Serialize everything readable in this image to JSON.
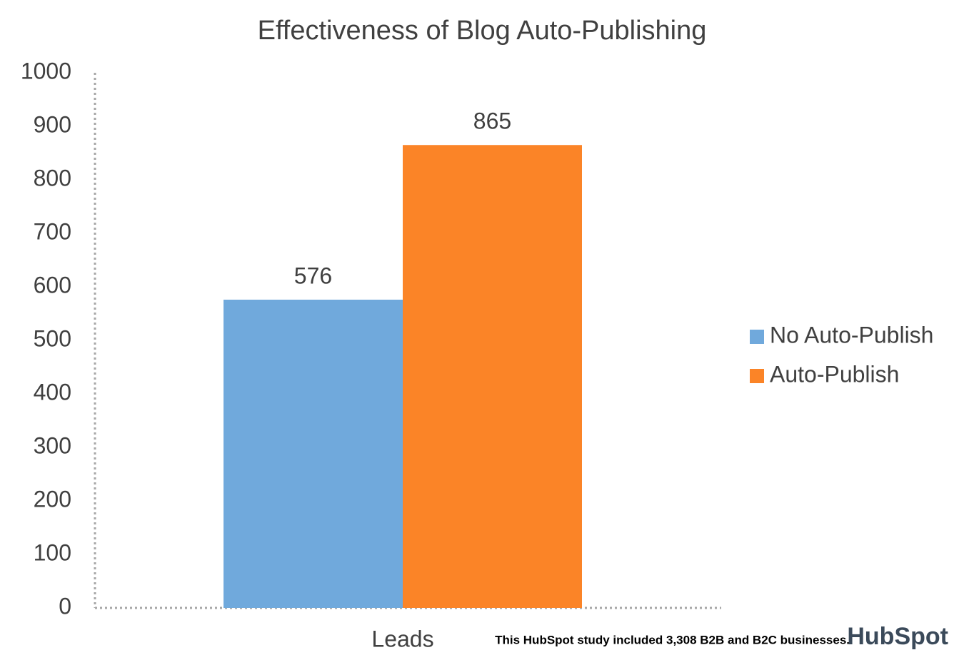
{
  "chart_data": {
    "type": "bar",
    "title": "Effectiveness of Blog Auto-Publishing",
    "categories": [
      "Leads"
    ],
    "series": [
      {
        "name": "No Auto-Publish",
        "color": "#70a9dc",
        "values": [
          576
        ]
      },
      {
        "name": "Auto-Publish",
        "color": "#fb8427",
        "values": [
          865
        ]
      }
    ],
    "ylim": [
      0,
      1000
    ],
    "yticks": [
      0,
      100,
      200,
      300,
      400,
      500,
      600,
      700,
      800,
      900,
      1000
    ],
    "grid": false,
    "legend": "right",
    "note": "This HubSpot study included 3,308 B2B and B2C businesses.",
    "logo": "HubSpot"
  }
}
